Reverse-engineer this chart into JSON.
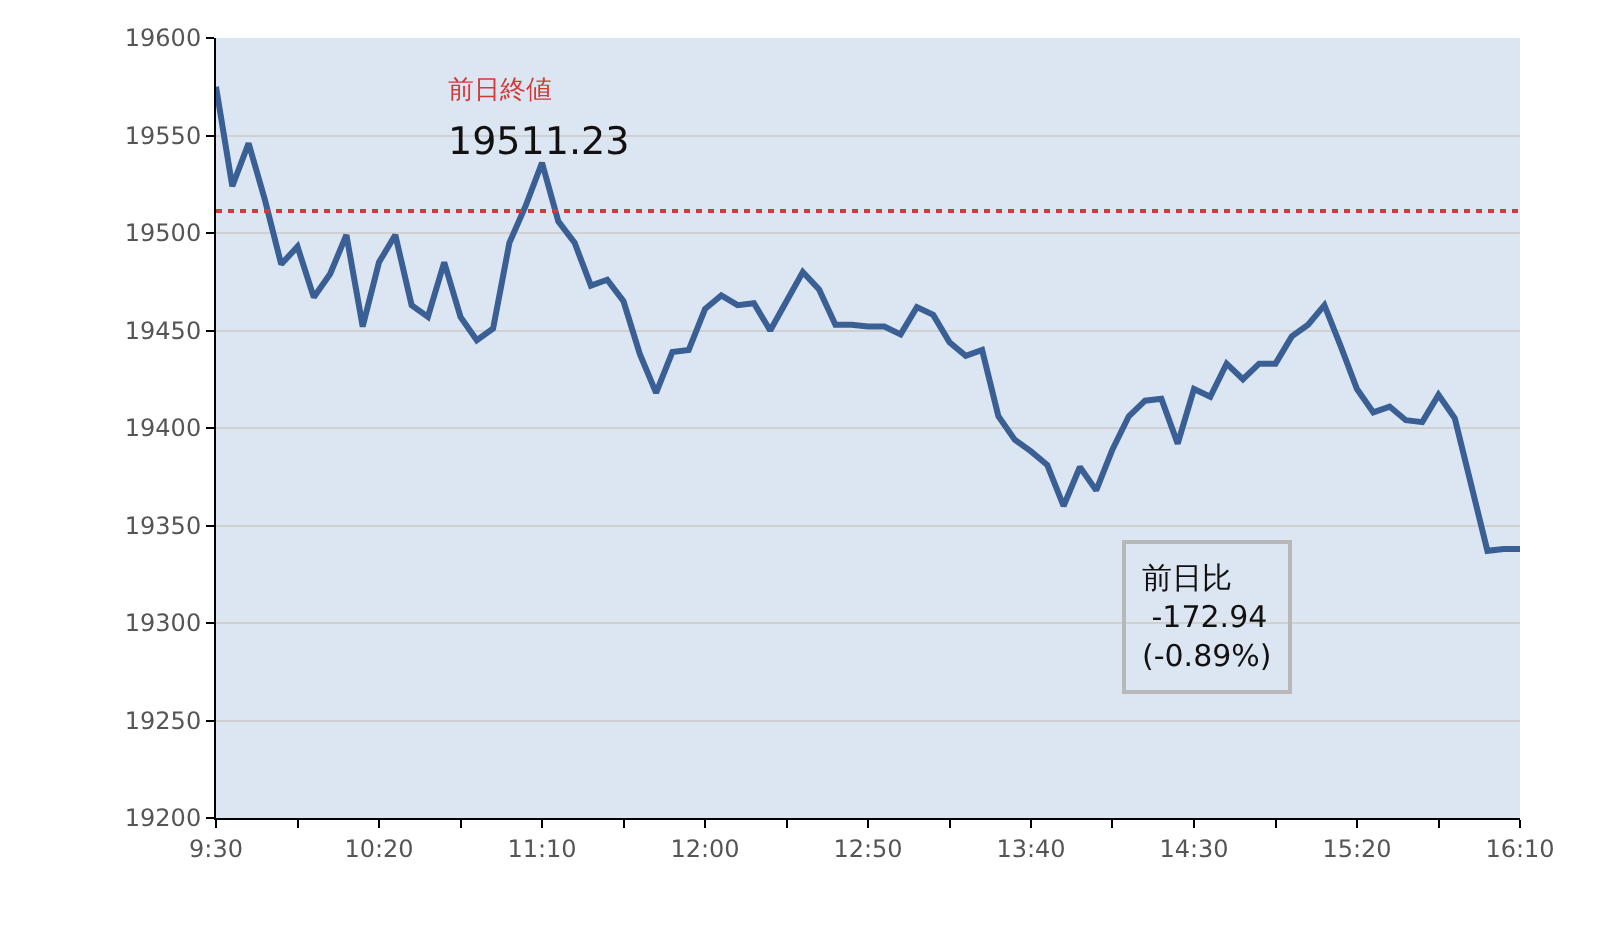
{
  "chart_data": {
    "type": "line",
    "x": [
      9.5,
      9.5833,
      9.6667,
      9.75,
      9.8333,
      9.9167,
      10.0,
      10.0833,
      10.1667,
      10.25,
      10.3333,
      10.4167,
      10.5,
      10.5833,
      10.6667,
      10.75,
      10.8333,
      10.9167,
      11.0,
      11.0833,
      11.1667,
      11.25,
      11.3333,
      11.4167,
      11.5,
      11.5833,
      11.6667,
      11.75,
      11.8333,
      11.9167,
      12.0,
      12.0833,
      12.1667,
      12.25,
      12.3333,
      12.4167,
      12.5,
      12.5833,
      12.6667,
      12.75,
      12.8333,
      12.9167,
      13.0,
      13.0833,
      13.1667,
      13.25,
      13.3333,
      13.4167,
      13.5,
      13.5833,
      13.6667,
      13.75,
      13.8333,
      13.9167,
      14.0,
      14.0833,
      14.1667,
      14.25,
      14.3333,
      14.4167,
      14.5,
      14.5833,
      14.6667,
      14.75,
      14.8333,
      14.9167,
      15.0,
      15.0833,
      15.1667,
      15.25,
      15.3333,
      15.4167,
      15.5,
      15.5833,
      15.6667,
      15.75,
      15.8333,
      15.9167,
      16.0,
      16.0833,
      16.1667
    ],
    "series": [
      {
        "color": "#3a5f95",
        "values": [
          19575,
          19524,
          19546,
          19517,
          19484,
          19493,
          19467,
          19479,
          19499,
          19452,
          19485,
          19499,
          19463,
          19457,
          19485,
          19457,
          19445,
          19451,
          19495,
          19514,
          19536,
          19506,
          19495,
          19473,
          19476,
          19465,
          19438,
          19418,
          19439,
          19440,
          19461,
          19468,
          19463,
          19464,
          19450,
          19465,
          19480,
          19471,
          19453,
          19453,
          19452,
          19452,
          19448,
          19462,
          19458,
          19444,
          19437,
          19440,
          19406,
          19394,
          19388,
          19381,
          19360,
          19380,
          19368,
          19389,
          19406,
          19414,
          19415,
          19392,
          19420,
          19416,
          19433,
          19425,
          19433,
          19433,
          19447,
          19453,
          19463,
          19442,
          19420,
          19408,
          19411,
          19404,
          19403,
          19417,
          19405,
          19371,
          19337,
          19338,
          19338
        ]
      }
    ],
    "xlim": [
      9.5,
      16.1667
    ],
    "xticks": [
      {
        "value": 9.5,
        "label": "9:30"
      },
      {
        "value": 9.9167,
        "label": null
      },
      {
        "value": 10.3333,
        "label": "10:20"
      },
      {
        "value": 10.75,
        "label": null
      },
      {
        "value": 11.1667,
        "label": "11:10"
      },
      {
        "value": 11.5833,
        "label": null
      },
      {
        "value": 12.0,
        "label": "12:00"
      },
      {
        "value": 12.4167,
        "label": null
      },
      {
        "value": 12.8333,
        "label": "12:50"
      },
      {
        "value": 13.25,
        "label": null
      },
      {
        "value": 13.6667,
        "label": "13:40"
      },
      {
        "value": 14.0833,
        "label": null
      },
      {
        "value": 14.5,
        "label": "14:30"
      },
      {
        "value": 14.9167,
        "label": null
      },
      {
        "value": 15.3333,
        "label": "15:20"
      },
      {
        "value": 15.75,
        "label": null
      },
      {
        "value": 16.1667,
        "label": "16:10"
      }
    ],
    "ylim": [
      19200,
      19600
    ],
    "yticks": [
      19200,
      19250,
      19300,
      19350,
      19400,
      19450,
      19500,
      19550,
      19600
    ],
    "grid": "y",
    "marker": "none",
    "line_style": "solid",
    "ref_lines": [
      {
        "axis": "y",
        "value": 19511.23,
        "label": "前日終値\n19511.23",
        "color": "#d03a3a",
        "line_style": "dotted"
      }
    ],
    "annotations": [
      "前日比\n -172.94\n(-0.89%)"
    ]
  }
}
